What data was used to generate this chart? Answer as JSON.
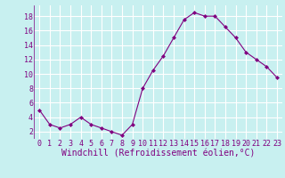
{
  "x": [
    0,
    1,
    2,
    3,
    4,
    5,
    6,
    7,
    8,
    9,
    10,
    11,
    12,
    13,
    14,
    15,
    16,
    17,
    18,
    19,
    20,
    21,
    22,
    23
  ],
  "y": [
    5,
    3,
    2.5,
    3,
    4,
    3,
    2.5,
    2,
    1.5,
    3,
    8,
    10.5,
    12.5,
    15,
    17.5,
    18.5,
    18,
    18,
    16.5,
    15,
    13,
    12,
    11,
    9.5
  ],
  "line_color": "#800080",
  "marker": "D",
  "marker_size": 2,
  "bg_color": "#c8f0f0",
  "grid_color": "#ffffff",
  "xlabel": "Windchill (Refroidissement éolien,°C)",
  "xlabel_color": "#800080",
  "xlabel_fontsize": 7,
  "tick_color": "#800080",
  "tick_fontsize": 6,
  "yticks": [
    2,
    4,
    6,
    8,
    10,
    12,
    14,
    16,
    18
  ],
  "ylim": [
    1.0,
    19.5
  ],
  "xlim": [
    -0.5,
    23.5
  ]
}
